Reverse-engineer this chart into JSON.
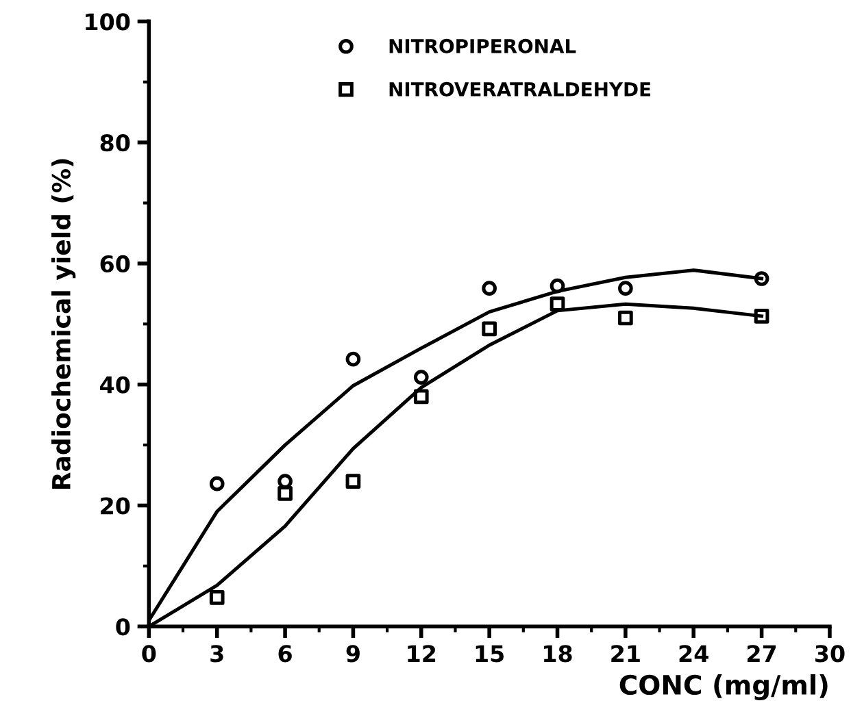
{
  "chart_data": {
    "type": "scatter",
    "xlabel": "CONC (mg/ml)",
    "ylabel": "Radiochemical yield (%)",
    "xlim": [
      0,
      30
    ],
    "xticks": [
      0,
      3,
      6,
      9,
      12,
      15,
      18,
      21,
      24,
      27,
      30
    ],
    "ylim": [
      0,
      100
    ],
    "yticks": [
      0,
      20,
      40,
      60,
      80,
      100
    ],
    "grid": false,
    "legend": "top",
    "series": [
      {
        "name": "NITROPIPERONAL",
        "color": "#000000",
        "marker": "circle",
        "x": [
          3,
          6,
          9,
          12,
          15,
          18,
          21,
          27
        ],
        "values": [
          23.6,
          24.0,
          44.2,
          41.2,
          55.9,
          56.3,
          55.9,
          57.5
        ]
      },
      {
        "name": "NITROVERATRALDEHYDE",
        "color": "#000000",
        "marker": "square",
        "x": [
          3,
          6,
          9,
          12,
          15,
          18,
          21,
          27
        ],
        "values": [
          4.8,
          22,
          24,
          38,
          49.2,
          53.3,
          51,
          51.3
        ]
      },
      {
        "type": "line",
        "color": "#000000",
        "marker": "none",
        "line_style": "solid",
        "x": [
          0,
          3,
          6,
          9,
          12,
          15,
          18,
          21,
          24,
          27
        ],
        "values": [
          1,
          19,
          30,
          39.8,
          46,
          52,
          55.4,
          57.7,
          58.9,
          57.5
        ]
      },
      {
        "type": "line",
        "color": "#000000",
        "marker": "none",
        "line_style": "solid",
        "x": [
          0,
          3,
          6,
          9,
          12,
          15,
          18,
          21,
          24,
          27
        ],
        "values": [
          0,
          6.8,
          16.6,
          29.4,
          39.5,
          46.5,
          52.2,
          53.3,
          52.6,
          51.3
        ]
      }
    ]
  }
}
